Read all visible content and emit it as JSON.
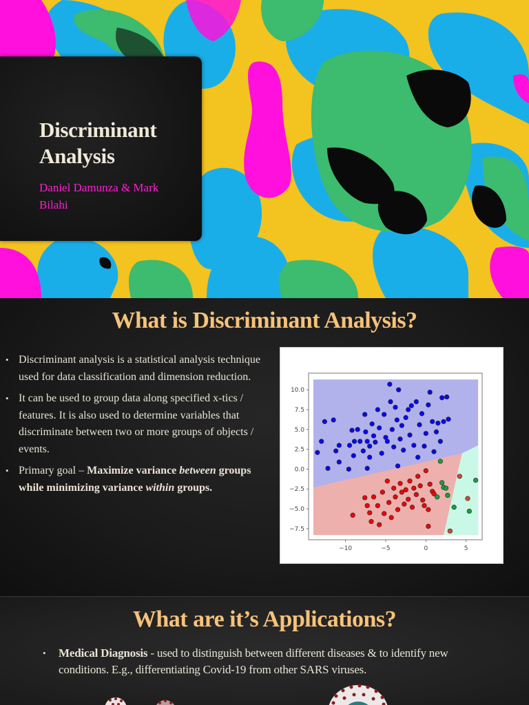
{
  "slide1": {
    "title": "Discriminant Analysis",
    "title_line1": "Discriminant",
    "title_line2": "Analysis",
    "authors": "Daniel Damunza & Mark Bilahi",
    "authors_line1": "Daniel Damunza & Mark",
    "authors_line2": "Bilahi",
    "colors": {
      "title": "#efe9da",
      "authors": "#ff1ed2",
      "card": "#1a1a1a"
    },
    "background_palette": [
      "#f3c31f",
      "#1aaee8",
      "#3dbb6e",
      "#ff10dc",
      "#0a0a0a"
    ]
  },
  "slide2": {
    "heading": "What is Discriminant Analysis?",
    "bullets": [
      {
        "text": "Discriminant analysis is a statistical analysis technique used for data classification and dimension reduction."
      },
      {
        "text": "It can be used to group data along specified x-tics / features. It is also used to determine variables that discriminate between two or more groups of objects / events."
      },
      {
        "prefix": "Primary goal – ",
        "bold1": "Maximize variance ",
        "bold_italic1": "between",
        "bold2": " groups while minimizing variance ",
        "bold_italic2": "within",
        "bold3": " groups."
      }
    ],
    "colors": {
      "heading": "#f6c27a",
      "text": "#e9e4d6"
    }
  },
  "chart_data": {
    "type": "scatter",
    "title": "",
    "xlabel": "",
    "ylabel": "",
    "xlim": [
      -14,
      6.5
    ],
    "ylim": [
      -8.3,
      11.3
    ],
    "x_ticks": [
      "−10",
      "−5",
      "0",
      "5"
    ],
    "y_ticks": [
      "10.0",
      "7.5",
      "5.0",
      "2.5",
      "0.0",
      "−2.5",
      "−5.0",
      "−7.5"
    ],
    "grid": false,
    "legend": null,
    "regions": [
      {
        "class": "blue",
        "color": "#b1b1ec",
        "description": "upper region above boundary line from (-14,-2.3) to (6.5,3.0)"
      },
      {
        "class": "red",
        "color": "#eeb0ac",
        "description": "lower-left region"
      },
      {
        "class": "green",
        "color": "#c9f9e6",
        "description": "lower-right wedge, boundary from (4.5,2.0) to (2.2,-8.3)"
      }
    ],
    "series": [
      {
        "name": "class blue",
        "color": "#0a0ae6",
        "points": [
          [
            -13.5,
            2.1
          ],
          [
            -13,
            3.5
          ],
          [
            -12.6,
            6
          ],
          [
            -12.2,
            0.1
          ],
          [
            -11.5,
            6.2
          ],
          [
            -11.2,
            2.3
          ],
          [
            -10.8,
            3
          ],
          [
            -10.8,
            0.9
          ],
          [
            -9.6,
            0
          ],
          [
            -9.5,
            3
          ],
          [
            -9.2,
            4.9
          ],
          [
            -9,
            1.7
          ],
          [
            -8.9,
            3.5
          ],
          [
            -8.5,
            5
          ],
          [
            -8.2,
            3.5
          ],
          [
            -7.8,
            2.3
          ],
          [
            -7.6,
            6.9
          ],
          [
            -7.5,
            4.7
          ],
          [
            -7.3,
            3.5
          ],
          [
            -7,
            2.9
          ],
          [
            -7,
            1.5
          ],
          [
            -6.7,
            5.7
          ],
          [
            -6.5,
            4.2
          ],
          [
            -6.3,
            3.4
          ],
          [
            -6,
            7.5
          ],
          [
            -5.8,
            5.2
          ],
          [
            -5.5,
            2
          ],
          [
            -5.2,
            6.9
          ],
          [
            -5,
            4
          ],
          [
            -4.8,
            3.5
          ],
          [
            -4.5,
            10.7
          ],
          [
            -4.4,
            8.5
          ],
          [
            -4.2,
            5
          ],
          [
            -4,
            2.8
          ],
          [
            -3.8,
            7.8
          ],
          [
            -3.6,
            6.2
          ],
          [
            -3.4,
            10
          ],
          [
            -3.2,
            3.8
          ],
          [
            -3,
            5.5
          ],
          [
            -2.8,
            2.4
          ],
          [
            -2.5,
            6.5
          ],
          [
            -2.2,
            7.5
          ],
          [
            -2,
            4.3
          ],
          [
            -1.8,
            8
          ],
          [
            -1.5,
            3
          ],
          [
            -1.2,
            8.5
          ],
          [
            -1,
            1.5
          ],
          [
            -0.8,
            5.6
          ],
          [
            -0.5,
            7
          ],
          [
            -0.2,
            2.9
          ],
          [
            0,
            4.5
          ],
          [
            0.3,
            8.1
          ],
          [
            0.5,
            9.7
          ],
          [
            0.8,
            6
          ],
          [
            1,
            2.2
          ],
          [
            1.3,
            4.7
          ],
          [
            1.5,
            5.8
          ],
          [
            1.8,
            3.5
          ],
          [
            2,
            9
          ],
          [
            2.2,
            6
          ],
          [
            2.6,
            9.1
          ],
          [
            2.8,
            6.3
          ],
          [
            -7.3,
            0.1
          ],
          [
            -3.5,
            0.4
          ]
        ]
      },
      {
        "name": "class red",
        "color": "#e60a0a",
        "points": [
          [
            -9.1,
            -5.8
          ],
          [
            -7.6,
            -3.6
          ],
          [
            -7.3,
            -4.6
          ],
          [
            -7,
            -5.5
          ],
          [
            -6.8,
            -6.6
          ],
          [
            -6.5,
            -3.5
          ],
          [
            -6,
            -4.6
          ],
          [
            -5.8,
            -7
          ],
          [
            -5.4,
            -2.9
          ],
          [
            -5.2,
            -5.6
          ],
          [
            -4.8,
            -1.5
          ],
          [
            -4.6,
            -4.2
          ],
          [
            -4.3,
            -6.1
          ],
          [
            -4,
            -2.4
          ],
          [
            -3.8,
            -3.5
          ],
          [
            -3.5,
            -5.1
          ],
          [
            -3.2,
            -1.8
          ],
          [
            -3,
            -2.9
          ],
          [
            -2.7,
            -4.4
          ],
          [
            -2.5,
            -2.6
          ],
          [
            -2.2,
            -3.8
          ],
          [
            -2,
            -1.5
          ],
          [
            -1.7,
            -4.8
          ],
          [
            -1.5,
            -2.4
          ],
          [
            -1.2,
            -3.2
          ],
          [
            -1,
            -0.9
          ],
          [
            -0.7,
            -2.1
          ],
          [
            -0.4,
            -3.9
          ],
          [
            -0.2,
            -4.6
          ],
          [
            0,
            -0.2
          ],
          [
            0.3,
            -5.1
          ],
          [
            0.5,
            -1.9
          ],
          [
            0.8,
            -2.8
          ],
          [
            1,
            -3.1
          ],
          [
            0.3,
            -7.2
          ]
        ]
      },
      {
        "name": "class green",
        "color": "#18a040",
        "points": [
          [
            1.8,
            1.0
          ],
          [
            2.0,
            -1.7
          ],
          [
            2.2,
            -2.3
          ],
          [
            2.5,
            -2.4
          ],
          [
            1.4,
            -3.5
          ],
          [
            2.7,
            -3.3
          ],
          [
            3.5,
            -4.8
          ],
          [
            5.4,
            -5.3
          ],
          [
            6.2,
            -1.4
          ]
        ]
      },
      {
        "name": "misclassified (orange-red in green region)",
        "color": "#d04a2a",
        "points": [
          [
            4.2,
            -0.9
          ],
          [
            5.2,
            -3.7
          ],
          [
            3.0,
            -7.8
          ]
        ]
      }
    ]
  },
  "slide3": {
    "heading": "What are it’s Applications?",
    "bullets": [
      {
        "bold": "Medical Diagnosis",
        "text": " - used to distinguish between different diseases & to identify new conditions. E.g., differentiating Covid-19 from other SARS viruses."
      }
    ],
    "images": [
      "virus-illustration-1",
      "virus-illustration-2",
      "virus-illustration-3"
    ]
  }
}
